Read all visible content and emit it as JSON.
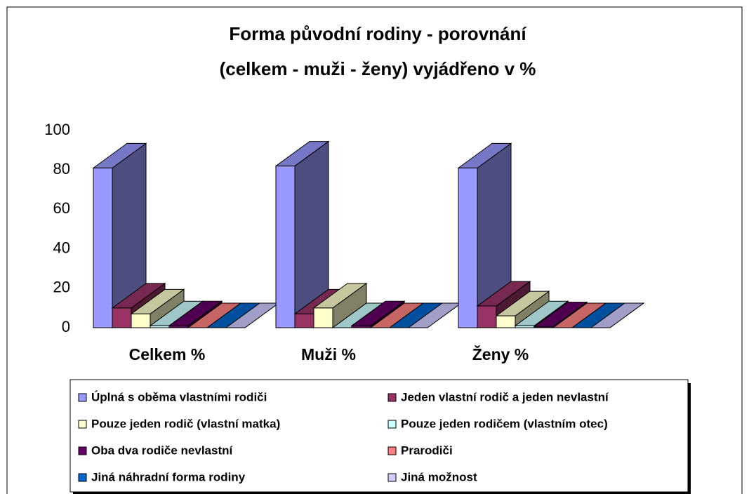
{
  "chart_data": {
    "type": "bar3d",
    "title": [
      "Forma původní rodiny - porovnání",
      "(celkem - muži - ženy) vyjádřeno v %"
    ],
    "categories": [
      "Celkem %",
      "Muži %",
      "Ženy %"
    ],
    "ylim": [
      0,
      100
    ],
    "yticks": [
      0,
      20,
      40,
      60,
      80,
      100
    ],
    "series": [
      {
        "name": "Úplná s oběma vlastními rodiči",
        "color": "#9999FF",
        "values": [
          81,
          82,
          81
        ]
      },
      {
        "name": "Jeden vlastní rodič a jeden nevlastní",
        "color": "#993366",
        "values": [
          10,
          7,
          11
        ]
      },
      {
        "name": "Pouze jeden rodič (vlastní matka)",
        "color": "#FFFFCC",
        "values": [
          7,
          10,
          6
        ]
      },
      {
        "name": "Pouze jeden rodičem (vlastním otec)",
        "color": "#CCFFFF",
        "values": [
          1,
          0,
          1
        ]
      },
      {
        "name": "Oba dva rodiče nevlastní",
        "color": "#660066",
        "values": [
          1,
          1,
          0.5
        ]
      },
      {
        "name": "Prarodiči",
        "color": "#FF8080",
        "values": [
          0,
          0,
          0
        ]
      },
      {
        "name": "Jiná náhradní forma rodiny",
        "color": "#0066CC",
        "values": [
          0,
          0,
          0
        ]
      },
      {
        "name": "Jiná možnost",
        "color": "#CCCCFF",
        "values": [
          0,
          0,
          0
        ]
      }
    ]
  }
}
